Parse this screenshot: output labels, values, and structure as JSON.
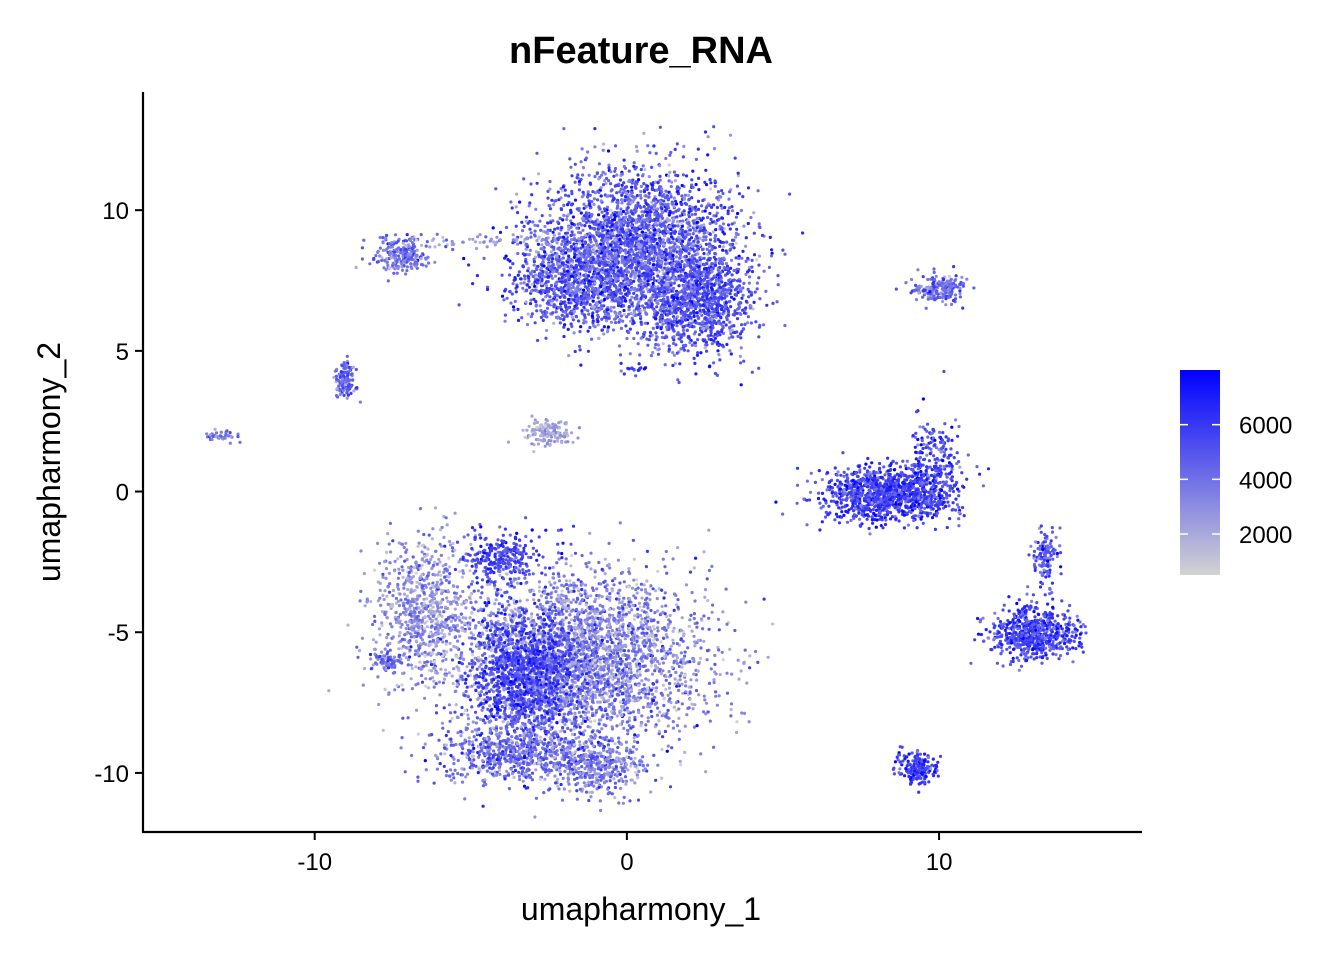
{
  "chart_data": {
    "type": "scatter",
    "title": "nFeature_RNA",
    "xlabel": "umapharmony_1",
    "ylabel": "umapharmony_2",
    "xlim": [
      -15.5,
      16.5
    ],
    "ylim": [
      -12.1,
      14.2
    ],
    "x_ticks": [
      -10,
      0,
      10
    ],
    "x_tick_labels": [
      "-10",
      "0",
      "10"
    ],
    "y_ticks": [
      -10,
      -5,
      0,
      5,
      10
    ],
    "y_tick_labels": [
      "-10",
      "-5",
      "0",
      "5",
      "10"
    ],
    "grid": false,
    "legend_position": "right",
    "color_scale": {
      "low_color": "#d3d3d3",
      "high_color": "#0000ff",
      "min": 500,
      "max": 8000,
      "breaks": [
        2000,
        4000,
        6000
      ],
      "break_labels": [
        "2000",
        "4000",
        "6000"
      ]
    },
    "clusters": [
      {
        "name": "top-large-cluster",
        "cx": 0.4,
        "cy": 8.7,
        "sx": 1.6,
        "sy": 1.4,
        "n": 2800,
        "mean": 4600,
        "spread": 1500
      },
      {
        "name": "top-right-lobe",
        "cx": 2.3,
        "cy": 6.7,
        "sx": 0.9,
        "sy": 0.9,
        "n": 900,
        "mean": 5200,
        "spread": 1200
      },
      {
        "name": "top-left-lobe",
        "cx": -1.7,
        "cy": 7.5,
        "sx": 1.0,
        "sy": 0.8,
        "n": 800,
        "mean": 4800,
        "spread": 1500
      },
      {
        "name": "top-strand",
        "cx": -4.5,
        "cy": 8.9,
        "sx": 1.5,
        "sy": 0.12,
        "n": 70,
        "mean": 2500,
        "spread": 900
      },
      {
        "name": "small-upper-left",
        "cx": -7.2,
        "cy": 8.4,
        "sx": 0.45,
        "sy": 0.28,
        "n": 220,
        "mean": 4200,
        "spread": 1300
      },
      {
        "name": "small-left-mid",
        "cx": -9.0,
        "cy": 4.0,
        "sx": 0.17,
        "sy": 0.35,
        "n": 120,
        "mean": 4500,
        "spread": 1200
      },
      {
        "name": "tiny-far-left",
        "cx": -13.0,
        "cy": 2.0,
        "sx": 0.25,
        "sy": 0.1,
        "n": 40,
        "mean": 3800,
        "spread": 900
      },
      {
        "name": "small-center",
        "cx": -2.5,
        "cy": 2.1,
        "sx": 0.4,
        "sy": 0.22,
        "n": 140,
        "mean": 2300,
        "spread": 700
      },
      {
        "name": "dot-center-strand",
        "cx": 0.3,
        "cy": 4.4,
        "sx": 0.22,
        "sy": 0.1,
        "n": 15,
        "mean": 6200,
        "spread": 800
      },
      {
        "name": "bottom-large-core",
        "cx": -1.6,
        "cy": -6.0,
        "sx": 2.0,
        "sy": 1.5,
        "n": 3400,
        "mean": 3300,
        "spread": 1600
      },
      {
        "name": "bottom-dark-band",
        "cx": -3.3,
        "cy": -6.4,
        "sx": 0.8,
        "sy": 1.1,
        "n": 900,
        "mean": 5800,
        "spread": 1000
      },
      {
        "name": "bottom-left-arm",
        "cx": -6.5,
        "cy": -4.2,
        "sx": 0.8,
        "sy": 1.3,
        "n": 700,
        "mean": 2800,
        "spread": 1200
      },
      {
        "name": "bottom-upper-arm",
        "cx": -3.9,
        "cy": -2.3,
        "sx": 0.65,
        "sy": 0.45,
        "n": 280,
        "mean": 5600,
        "spread": 1100
      },
      {
        "name": "bottom-tail-left",
        "cx": -7.7,
        "cy": -6.0,
        "sx": 0.25,
        "sy": 0.2,
        "n": 70,
        "mean": 4200,
        "spread": 1100
      },
      {
        "name": "bottom-lower-lobe",
        "cx": -3.6,
        "cy": -9.3,
        "sx": 1.3,
        "sy": 0.55,
        "n": 700,
        "mean": 4000,
        "spread": 1500
      },
      {
        "name": "bottom-lower-right",
        "cx": -1.0,
        "cy": -9.8,
        "sx": 0.7,
        "sy": 0.5,
        "n": 350,
        "mean": 3500,
        "spread": 1400
      },
      {
        "name": "right-mid-cluster",
        "cx": 8.3,
        "cy": -0.1,
        "sx": 1.0,
        "sy": 0.5,
        "n": 1100,
        "mean": 5600,
        "spread": 1300
      },
      {
        "name": "right-mid-spike",
        "cx": 9.9,
        "cy": 0.9,
        "sx": 0.45,
        "sy": 0.9,
        "n": 220,
        "mean": 5500,
        "spread": 1300
      },
      {
        "name": "right-upper-small",
        "cx": 10.0,
        "cy": 7.2,
        "sx": 0.45,
        "sy": 0.25,
        "n": 200,
        "mean": 4300,
        "spread": 1200
      },
      {
        "name": "right-lower-cluster",
        "cx": 13.0,
        "cy": -5.0,
        "sx": 0.7,
        "sy": 0.45,
        "n": 650,
        "mean": 5600,
        "spread": 1200
      },
      {
        "name": "right-lower-spike",
        "cx": 13.4,
        "cy": -2.3,
        "sx": 0.18,
        "sy": 0.6,
        "n": 130,
        "mean": 5000,
        "spread": 1300
      },
      {
        "name": "bottom-right-small",
        "cx": 9.3,
        "cy": -9.8,
        "sx": 0.3,
        "sy": 0.3,
        "n": 190,
        "mean": 5800,
        "spread": 1100
      }
    ]
  }
}
